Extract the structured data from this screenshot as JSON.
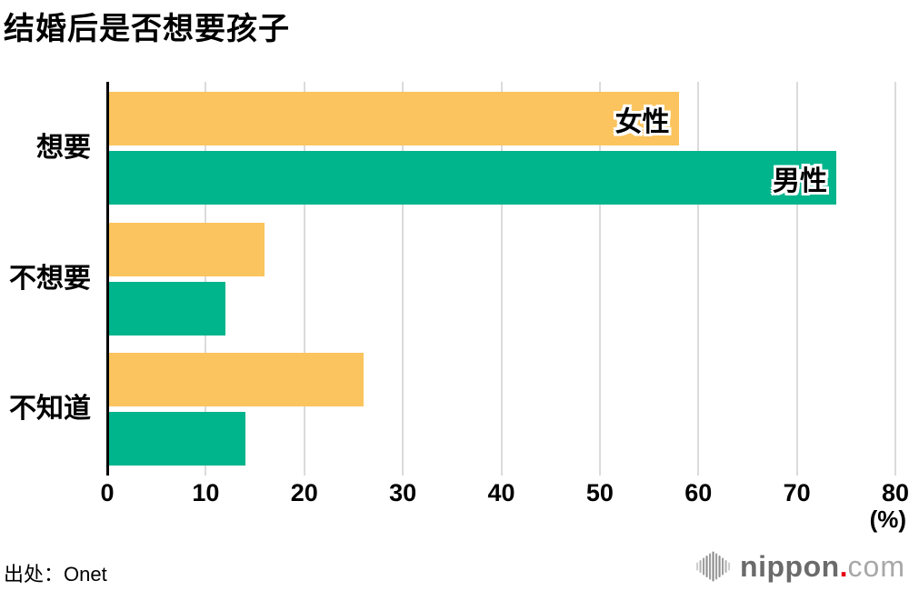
{
  "title": "结婚后是否想要孩子",
  "chart_data": {
    "type": "bar",
    "orientation": "horizontal",
    "title": "结婚后是否想要孩子",
    "categories": [
      "想要",
      "不想要",
      "不知道"
    ],
    "series": [
      {
        "name": "女性",
        "values": [
          58,
          16,
          26
        ],
        "color": "#FBC45E"
      },
      {
        "name": "男性",
        "values": [
          74,
          12,
          14
        ],
        "color": "#00B48C"
      }
    ],
    "xlabel": "(%)",
    "xlim": [
      0,
      80
    ],
    "xticks": [
      0,
      10,
      20,
      30,
      40,
      50,
      60,
      70,
      80
    ],
    "grid": true,
    "legend": "series names drawn inside the first pair of bars"
  },
  "axis": {
    "unit_label": "(%)"
  },
  "source": "出处：Onet",
  "logo": {
    "icon": "soundwave-icon",
    "brand": "nippon",
    "dot": ".",
    "tld": "com",
    "brand_color": "#6B6B6B",
    "dot_color": "#E60012",
    "tld_color": "#A8A8A8"
  },
  "colors": {
    "female_bar": "#FBC45E",
    "male_bar": "#00B48C",
    "gridline": "#DBDBDB",
    "axis_line": "#000000",
    "text": "#000000",
    "background": "#FFFFFF"
  }
}
